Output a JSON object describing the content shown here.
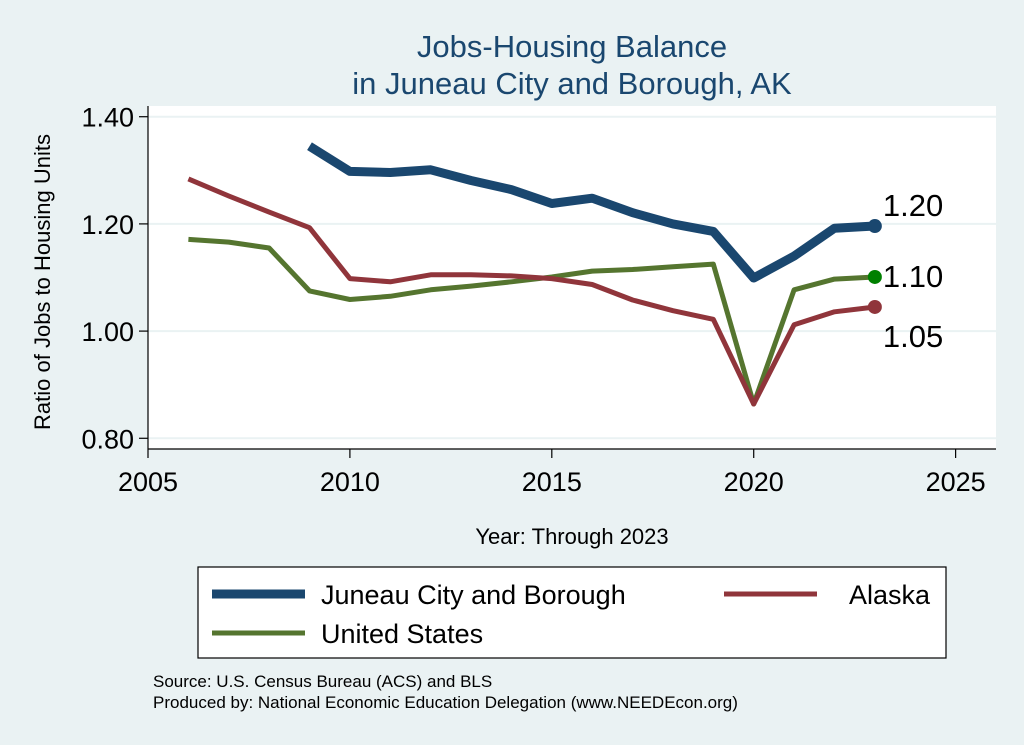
{
  "chart_data": {
    "type": "line",
    "title": [
      "Jobs-Housing Balance",
      "in Juneau City and Borough, AK"
    ],
    "xlabel": "Year: Through 2023",
    "ylabel": "Ratio of Jobs to Housing Units",
    "xlim": [
      2005,
      2026
    ],
    "ylim": [
      0.78,
      1.42
    ],
    "xticks": [
      2005,
      2010,
      2015,
      2020,
      2025
    ],
    "yticks": [
      0.8,
      1.0,
      1.2,
      1.4
    ],
    "ytick_labels": [
      "0.80",
      "1.00",
      "1.20",
      "1.40"
    ],
    "grid": true,
    "legend_position": "bottom",
    "series": [
      {
        "name": "Juneau City and Borough",
        "color": "#1a476f",
        "x": [
          2009,
          2010,
          2011,
          2012,
          2013,
          2014,
          2015,
          2016,
          2017,
          2018,
          2019,
          2020,
          2021,
          2022,
          2023
        ],
        "y": [
          1.345,
          1.298,
          1.296,
          1.301,
          1.281,
          1.264,
          1.238,
          1.248,
          1.221,
          1.2,
          1.186,
          1.099,
          1.14,
          1.192,
          1.196
        ],
        "end_label": "1.20"
      },
      {
        "name": "Alaska",
        "color": "#90353b",
        "x": [
          2006,
          2007,
          2008,
          2009,
          2010,
          2011,
          2012,
          2013,
          2014,
          2015,
          2016,
          2017,
          2018,
          2019,
          2020,
          2021,
          2022,
          2023
        ],
        "y": [
          1.284,
          1.252,
          1.222,
          1.193,
          1.098,
          1.092,
          1.105,
          1.105,
          1.103,
          1.098,
          1.087,
          1.058,
          1.038,
          1.022,
          0.864,
          1.012,
          1.036,
          1.045
        ],
        "end_label": "1.05"
      },
      {
        "name": "United States",
        "color": "#55752f",
        "x": [
          2006,
          2007,
          2008,
          2009,
          2010,
          2011,
          2012,
          2013,
          2014,
          2015,
          2016,
          2017,
          2018,
          2019,
          2020,
          2021,
          2022,
          2023
        ],
        "y": [
          1.171,
          1.166,
          1.155,
          1.075,
          1.059,
          1.065,
          1.077,
          1.084,
          1.092,
          1.101,
          1.112,
          1.115,
          1.12,
          1.125,
          0.864,
          1.077,
          1.097,
          1.101
        ],
        "end_label": "1.10",
        "end_marker_color": "#008000"
      }
    ]
  },
  "notes": [
    "Source: U.S. Census Bureau (ACS) and BLS",
    "Produced by: National Economic Education Delegation (www.NEEDEcon.org)"
  ]
}
